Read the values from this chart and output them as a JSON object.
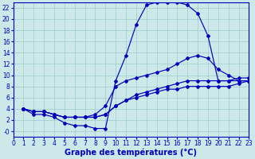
{
  "title": "Graphe des températures (°C)",
  "bg_color": "#cce8e8",
  "grid_color": "#99cccc",
  "line_color": "#0000bb",
  "xlim": [
    0,
    23
  ],
  "ylim": [
    -1,
    23
  ],
  "xticks": [
    0,
    1,
    2,
    3,
    4,
    5,
    6,
    7,
    8,
    9,
    10,
    11,
    12,
    13,
    14,
    15,
    16,
    17,
    18,
    19,
    20,
    21,
    22,
    23
  ],
  "yticks": [
    0,
    2,
    4,
    6,
    8,
    10,
    12,
    14,
    16,
    18,
    20,
    22
  ],
  "ytick_labels": [
    "-0",
    "2",
    "4",
    "6",
    "8",
    "10",
    "12",
    "14",
    "16",
    "18",
    "20",
    "22"
  ],
  "line1_x": [
    1,
    2,
    3,
    4,
    5,
    6,
    7,
    8,
    9,
    10,
    11,
    12,
    13,
    14,
    15,
    16,
    17,
    18,
    19,
    20,
    21,
    22,
    23
  ],
  "line1_y": [
    4,
    3,
    3,
    2.5,
    1.5,
    1,
    1,
    0.5,
    0.5,
    9,
    13.5,
    19,
    22.5,
    23,
    23,
    23,
    22.5,
    21,
    17,
    9,
    9,
    9,
    9
  ],
  "line2_x": [
    1,
    2,
    3,
    4,
    5,
    6,
    7,
    8,
    9,
    10,
    11,
    12,
    13,
    14,
    15,
    16,
    17,
    18,
    19,
    20,
    21,
    22,
    23
  ],
  "line2_y": [
    4,
    3.5,
    3.5,
    3,
    2.5,
    2.5,
    2.5,
    3,
    4.5,
    8,
    9,
    9.5,
    10,
    10.5,
    11,
    12,
    13,
    13.5,
    13,
    11,
    10,
    9,
    9
  ],
  "line3_x": [
    1,
    2,
    3,
    4,
    5,
    6,
    7,
    8,
    9,
    10,
    11,
    12,
    13,
    14,
    15,
    16,
    17,
    18,
    19,
    20,
    21,
    22,
    23
  ],
  "line3_y": [
    4,
    3.5,
    3.5,
    3,
    2.5,
    2.5,
    2.5,
    2.5,
    3,
    4.5,
    5.5,
    6.5,
    7,
    7.5,
    8,
    8.5,
    9,
    9,
    9,
    9,
    9,
    9.5,
    9.5
  ],
  "line4_x": [
    1,
    2,
    3,
    4,
    5,
    6,
    7,
    8,
    9,
    10,
    11,
    12,
    13,
    14,
    15,
    16,
    17,
    18,
    19,
    20,
    21,
    22,
    23
  ],
  "line4_y": [
    4,
    3.5,
    3.5,
    3,
    2.5,
    2.5,
    2.5,
    2.5,
    3,
    4.5,
    5.5,
    6,
    6.5,
    7,
    7.5,
    7.5,
    8,
    8,
    8,
    8,
    8,
    8.5,
    9
  ],
  "tick_fontsize": 5.5,
  "xlabel_fontsize": 7,
  "lw": 0.85,
  "ms": 2.0
}
